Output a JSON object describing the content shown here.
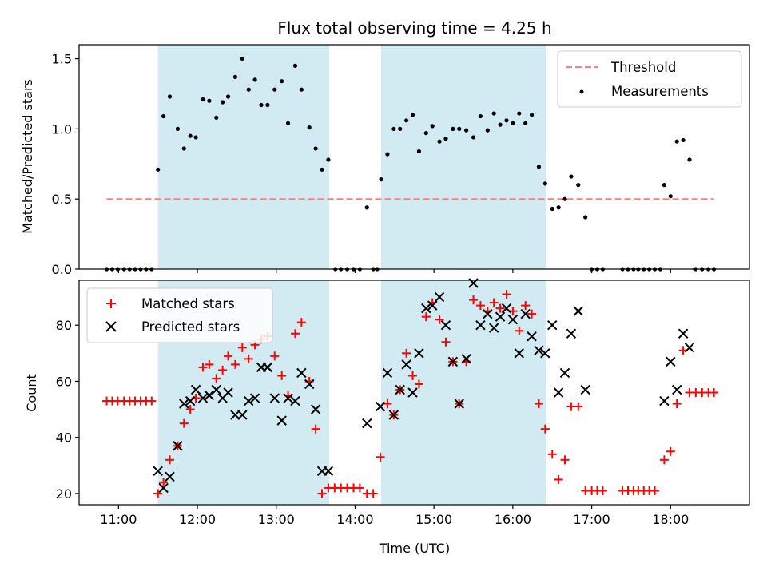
{
  "chart_data": {
    "title": "Flux total observing time = 4.25 h",
    "xlabel": "Time (UTC)",
    "xlim": [
      10.5,
      19.0
    ],
    "x_ticks": [
      {
        "v": 11,
        "label": "11:00"
      },
      {
        "v": 12,
        "label": "12:00"
      },
      {
        "v": 13,
        "label": "13:00"
      },
      {
        "v": 14,
        "label": "14:00"
      },
      {
        "v": 15,
        "label": "15:00"
      },
      {
        "v": 16,
        "label": "16:00"
      },
      {
        "v": 17,
        "label": "17:00"
      },
      {
        "v": 18,
        "label": "18:00"
      }
    ],
    "shaded_intervals": [
      [
        11.5,
        13.67
      ],
      [
        14.33,
        16.42
      ]
    ],
    "shade_color": "#add8e6",
    "top": {
      "type": "scatter",
      "ylabel": "Matched/Predicted stars",
      "ylim": [
        0,
        1.6
      ],
      "y_ticks": [
        {
          "v": 0,
          "label": "0.0"
        },
        {
          "v": 0.5,
          "label": "0.5"
        },
        {
          "v": 1.0,
          "label": "1.0"
        },
        {
          "v": 1.5,
          "label": "1.5"
        }
      ],
      "threshold": {
        "name": "Threshold",
        "y": 0.5,
        "x_from": 10.85,
        "x_to": 18.55,
        "color": "#ff7f7f"
      },
      "measurements_name": "Measurements",
      "measurements": [
        [
          10.85,
          0
        ],
        [
          10.92,
          0
        ],
        [
          10.99,
          0
        ],
        [
          11.07,
          0
        ],
        [
          11.14,
          0
        ],
        [
          11.21,
          0
        ],
        [
          11.28,
          0
        ],
        [
          11.35,
          0
        ],
        [
          11.42,
          0
        ],
        [
          11.5,
          0.71
        ],
        [
          11.57,
          1.09
        ],
        [
          11.65,
          1.23
        ],
        [
          11.75,
          1.0
        ],
        [
          11.83,
          0.86
        ],
        [
          11.91,
          0.95
        ],
        [
          11.98,
          0.94
        ],
        [
          12.07,
          1.21
        ],
        [
          12.15,
          1.2
        ],
        [
          12.24,
          1.08
        ],
        [
          12.32,
          1.19
        ],
        [
          12.39,
          1.23
        ],
        [
          12.48,
          1.37
        ],
        [
          12.57,
          1.5
        ],
        [
          12.65,
          1.28
        ],
        [
          12.73,
          1.35
        ],
        [
          12.81,
          1.17
        ],
        [
          12.89,
          1.17
        ],
        [
          12.98,
          1.28
        ],
        [
          13.07,
          1.34
        ],
        [
          13.15,
          1.04
        ],
        [
          13.24,
          1.45
        ],
        [
          13.32,
          1.28
        ],
        [
          13.42,
          1.01
        ],
        [
          13.5,
          0.86
        ],
        [
          13.58,
          0.71
        ],
        [
          13.66,
          0.78
        ],
        [
          13.75,
          0
        ],
        [
          13.82,
          0
        ],
        [
          13.9,
          0
        ],
        [
          13.98,
          0
        ],
        [
          14.06,
          0
        ],
        [
          14.15,
          0.44
        ],
        [
          14.23,
          0
        ],
        [
          14.28,
          0
        ],
        [
          14.33,
          0.64
        ],
        [
          14.41,
          0.82
        ],
        [
          14.49,
          1.0
        ],
        [
          14.57,
          1.0
        ],
        [
          14.65,
          1.06
        ],
        [
          14.73,
          1.1
        ],
        [
          14.81,
          0.84
        ],
        [
          14.9,
          0.97
        ],
        [
          14.98,
          1.02
        ],
        [
          15.07,
          0.91
        ],
        [
          15.15,
          0.93
        ],
        [
          15.24,
          1.0
        ],
        [
          15.32,
          1.0
        ],
        [
          15.41,
          0.99
        ],
        [
          15.5,
          0.94
        ],
        [
          15.59,
          1.09
        ],
        [
          15.68,
          0.99
        ],
        [
          15.76,
          1.11
        ],
        [
          15.84,
          1.03
        ],
        [
          15.92,
          1.06
        ],
        [
          16.0,
          1.04
        ],
        [
          16.08,
          1.11
        ],
        [
          16.16,
          1.04
        ],
        [
          16.24,
          1.1
        ],
        [
          16.33,
          0.73
        ],
        [
          16.41,
          0.61
        ],
        [
          16.5,
          0.43
        ],
        [
          16.58,
          0.44
        ],
        [
          16.66,
          0.5
        ],
        [
          16.74,
          0.66
        ],
        [
          16.83,
          0.6
        ],
        [
          16.92,
          0.37
        ],
        [
          17.0,
          0
        ],
        [
          17.07,
          0
        ],
        [
          17.14,
          0
        ],
        [
          17.39,
          0
        ],
        [
          17.46,
          0
        ],
        [
          17.53,
          0
        ],
        [
          17.59,
          0
        ],
        [
          17.66,
          0
        ],
        [
          17.73,
          0
        ],
        [
          17.8,
          0
        ],
        [
          17.87,
          0
        ],
        [
          17.92,
          0.6
        ],
        [
          18.0,
          0.52
        ],
        [
          18.08,
          0.91
        ],
        [
          18.16,
          0.92
        ],
        [
          18.24,
          0.78
        ],
        [
          18.32,
          0
        ],
        [
          18.4,
          0
        ],
        [
          18.48,
          0
        ],
        [
          18.55,
          0
        ]
      ]
    },
    "bottom": {
      "type": "scatter",
      "ylabel": "Count",
      "ylim": [
        16,
        96
      ],
      "y_ticks": [
        {
          "v": 20,
          "label": "20"
        },
        {
          "v": 40,
          "label": "40"
        },
        {
          "v": 60,
          "label": "60"
        },
        {
          "v": 80,
          "label": "80"
        }
      ],
      "series": [
        {
          "name": "Matched stars",
          "marker": "plus",
          "color": "#ff0000",
          "points": [
            [
              10.85,
              53
            ],
            [
              10.92,
              53
            ],
            [
              10.99,
              53
            ],
            [
              11.07,
              53
            ],
            [
              11.14,
              53
            ],
            [
              11.21,
              53
            ],
            [
              11.28,
              53
            ],
            [
              11.35,
              53
            ],
            [
              11.42,
              53
            ],
            [
              11.5,
              20
            ],
            [
              11.57,
              24
            ],
            [
              11.65,
              32
            ],
            [
              11.75,
              37
            ],
            [
              11.83,
              45
            ],
            [
              11.91,
              50
            ],
            [
              11.98,
              54
            ],
            [
              12.07,
              65
            ],
            [
              12.15,
              66
            ],
            [
              12.24,
              61
            ],
            [
              12.32,
              64
            ],
            [
              12.39,
              69
            ],
            [
              12.48,
              66
            ],
            [
              12.57,
              72
            ],
            [
              12.65,
              68
            ],
            [
              12.73,
              73
            ],
            [
              12.81,
              75
            ],
            [
              12.89,
              76
            ],
            [
              12.98,
              69
            ],
            [
              13.07,
              62
            ],
            [
              13.15,
              55
            ],
            [
              13.24,
              77
            ],
            [
              13.32,
              81
            ],
            [
              13.42,
              60
            ],
            [
              13.5,
              43
            ],
            [
              13.58,
              20
            ],
            [
              13.66,
              22
            ],
            [
              13.74,
              22
            ],
            [
              13.82,
              22
            ],
            [
              13.9,
              22
            ],
            [
              13.98,
              22
            ],
            [
              14.06,
              22
            ],
            [
              14.15,
              20
            ],
            [
              14.23,
              20
            ],
            [
              14.32,
              33
            ],
            [
              14.41,
              52
            ],
            [
              14.49,
              48
            ],
            [
              14.57,
              57
            ],
            [
              14.65,
              70
            ],
            [
              14.73,
              62
            ],
            [
              14.81,
              59
            ],
            [
              14.9,
              83
            ],
            [
              14.98,
              88
            ],
            [
              15.07,
              82
            ],
            [
              15.15,
              74
            ],
            [
              15.24,
              67
            ],
            [
              15.32,
              52
            ],
            [
              15.41,
              67
            ],
            [
              15.5,
              89
            ],
            [
              15.59,
              87
            ],
            [
              15.68,
              85
            ],
            [
              15.76,
              88
            ],
            [
              15.84,
              86
            ],
            [
              15.92,
              91
            ],
            [
              16.0,
              85
            ],
            [
              16.08,
              78
            ],
            [
              16.16,
              87
            ],
            [
              16.24,
              84
            ],
            [
              16.33,
              52
            ],
            [
              16.41,
              43
            ],
            [
              16.5,
              34
            ],
            [
              16.58,
              25
            ],
            [
              16.66,
              32
            ],
            [
              16.74,
              51
            ],
            [
              16.83,
              51
            ],
            [
              16.92,
              21
            ],
            [
              17.0,
              21
            ],
            [
              17.07,
              21
            ],
            [
              17.14,
              21
            ],
            [
              17.39,
              21
            ],
            [
              17.46,
              21
            ],
            [
              17.53,
              21
            ],
            [
              17.59,
              21
            ],
            [
              17.66,
              21
            ],
            [
              17.73,
              21
            ],
            [
              17.8,
              21
            ],
            [
              17.92,
              32
            ],
            [
              18.0,
              35
            ],
            [
              18.08,
              52
            ],
            [
              18.16,
              71
            ],
            [
              18.24,
              56
            ],
            [
              18.32,
              56
            ],
            [
              18.4,
              56
            ],
            [
              18.48,
              56
            ],
            [
              18.55,
              56
            ]
          ]
        },
        {
          "name": "Predicted stars",
          "marker": "x",
          "color": "#000000",
          "points": [
            [
              11.5,
              28
            ],
            [
              11.57,
              22
            ],
            [
              11.65,
              26
            ],
            [
              11.75,
              37
            ],
            [
              11.83,
              52
            ],
            [
              11.91,
              53
            ],
            [
              11.98,
              57
            ],
            [
              12.07,
              54
            ],
            [
              12.15,
              55
            ],
            [
              12.24,
              57
            ],
            [
              12.32,
              54
            ],
            [
              12.39,
              56
            ],
            [
              12.48,
              48
            ],
            [
              12.57,
              48
            ],
            [
              12.65,
              53
            ],
            [
              12.73,
              54
            ],
            [
              12.81,
              65
            ],
            [
              12.89,
              65
            ],
            [
              12.98,
              54
            ],
            [
              13.07,
              46
            ],
            [
              13.15,
              54
            ],
            [
              13.24,
              53
            ],
            [
              13.32,
              63
            ],
            [
              13.42,
              59
            ],
            [
              13.5,
              50
            ],
            [
              13.58,
              28
            ],
            [
              13.66,
              28
            ],
            [
              14.15,
              45
            ],
            [
              14.32,
              51
            ],
            [
              14.41,
              63
            ],
            [
              14.49,
              48
            ],
            [
              14.57,
              57
            ],
            [
              14.65,
              66
            ],
            [
              14.73,
              56
            ],
            [
              14.81,
              70
            ],
            [
              14.9,
              86
            ],
            [
              14.98,
              87
            ],
            [
              15.07,
              90
            ],
            [
              15.15,
              80
            ],
            [
              15.24,
              67
            ],
            [
              15.32,
              52
            ],
            [
              15.41,
              68
            ],
            [
              15.5,
              95
            ],
            [
              15.59,
              80
            ],
            [
              15.68,
              84
            ],
            [
              15.76,
              79
            ],
            [
              15.84,
              83
            ],
            [
              15.92,
              86
            ],
            [
              16.0,
              82
            ],
            [
              16.08,
              70
            ],
            [
              16.16,
              84
            ],
            [
              16.24,
              76
            ],
            [
              16.33,
              71
            ],
            [
              16.41,
              70
            ],
            [
              16.5,
              80
            ],
            [
              16.58,
              56
            ],
            [
              16.66,
              63
            ],
            [
              16.74,
              77
            ],
            [
              16.83,
              85
            ],
            [
              16.92,
              57
            ],
            [
              17.92,
              53
            ],
            [
              18.0,
              67
            ],
            [
              18.08,
              57
            ],
            [
              18.16,
              77
            ],
            [
              18.24,
              72
            ]
          ]
        }
      ]
    }
  }
}
